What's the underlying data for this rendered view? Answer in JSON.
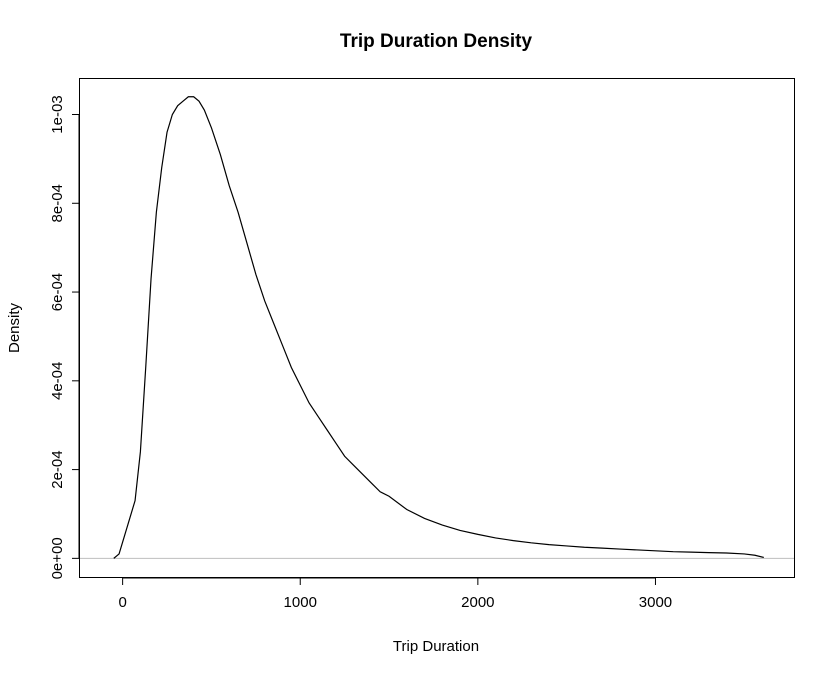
{
  "chart_data": {
    "type": "line",
    "title": "Trip Duration Density",
    "xlabel": "Trip Duration",
    "ylabel": "Density",
    "xlim": [
      -240,
      3780
    ],
    "ylim": [
      -4.2e-05,
      0.00108
    ],
    "x_ticks": [
      0,
      1000,
      2000,
      3000
    ],
    "x_tick_labels": [
      "0",
      "1000",
      "2000",
      "3000"
    ],
    "y_ticks": [
      0,
      0.0002,
      0.0004,
      0.0006,
      0.0008,
      0.001
    ],
    "y_tick_labels": [
      "0e+00",
      "2e-04",
      "4e-04",
      "6e-04",
      "8e-04",
      "1e-03"
    ],
    "grid": false,
    "baseline": 0,
    "colors": {
      "line": "#000000",
      "baseline": "#bebebe",
      "frame": "#000000"
    },
    "series": [
      {
        "x": [
          -50,
          -20,
          10,
          40,
          70,
          100,
          130,
          160,
          190,
          220,
          250,
          280,
          310,
          340,
          370,
          400,
          430,
          460,
          500,
          550,
          600,
          650,
          700,
          750,
          800,
          850,
          900,
          950,
          1000,
          1050,
          1100,
          1150,
          1200,
          1250,
          1300,
          1350,
          1400,
          1450,
          1500,
          1600,
          1700,
          1800,
          1900,
          2000,
          2100,
          2200,
          2300,
          2400,
          2500,
          2600,
          2700,
          2800,
          2900,
          3000,
          3100,
          3200,
          3300,
          3400,
          3500,
          3560,
          3610
        ],
        "y": [
          0,
          1e-05,
          5e-05,
          9e-05,
          0.00013,
          0.00024,
          0.00043,
          0.00063,
          0.00078,
          0.00088,
          0.00096,
          0.001,
          0.00102,
          0.00103,
          0.00104,
          0.00104,
          0.00103,
          0.00101,
          0.00097,
          0.00091,
          0.00084,
          0.00078,
          0.00071,
          0.00064,
          0.00058,
          0.00053,
          0.00048,
          0.00043,
          0.00039,
          0.00035,
          0.00032,
          0.00029,
          0.00026,
          0.00023,
          0.00021,
          0.00019,
          0.00017,
          0.00015,
          0.00014,
          0.00011,
          9e-05,
          7.5e-05,
          6.3e-05,
          5.4e-05,
          4.6e-05,
          4e-05,
          3.5e-05,
          3.1e-05,
          2.8e-05,
          2.5e-05,
          2.3e-05,
          2.1e-05,
          1.9e-05,
          1.7e-05,
          1.5e-05,
          1.4e-05,
          1.3e-05,
          1.2e-05,
          1e-05,
          7e-06,
          2e-06
        ]
      }
    ]
  }
}
